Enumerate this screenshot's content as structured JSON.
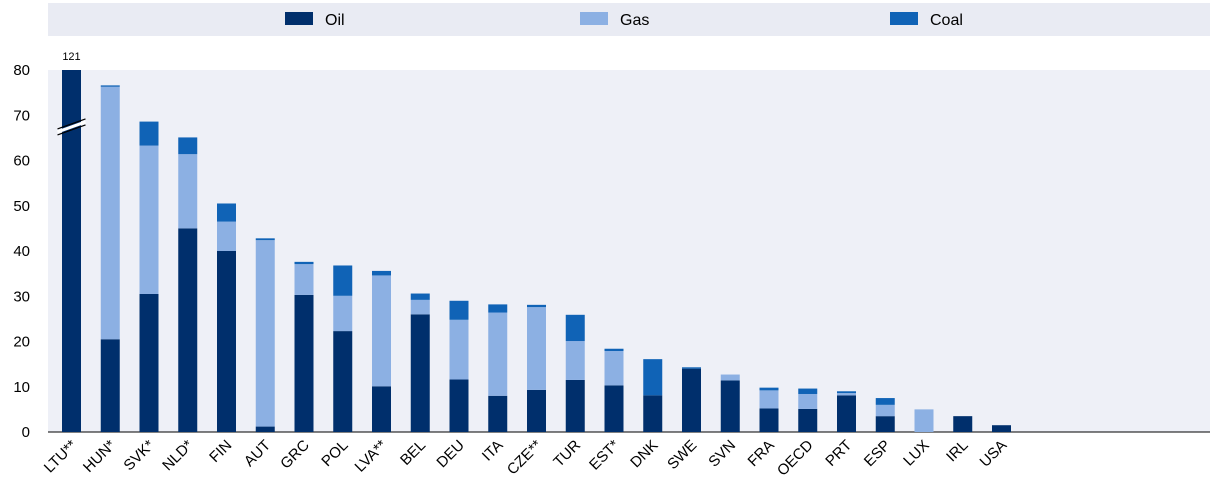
{
  "chart_data": {
    "type": "bar",
    "stacked": true,
    "categories": [
      "LTU**",
      "HUN*",
      "SVK*",
      "NLD*",
      "FIN",
      "AUT",
      "GRC",
      "POL",
      "LVA**",
      "BEL",
      "DEU",
      "ITA",
      "CZE**",
      "TUR",
      "EST*",
      "DNK",
      "SWE",
      "SVN",
      "FRA",
      "OECD",
      "PRT",
      "ESP",
      "LUX",
      "IRL",
      "USA"
    ],
    "series": [
      {
        "name": "Oil",
        "color": "#002f6c",
        "values": [
          121,
          20.5,
          30.5,
          45.0,
          40.0,
          1.2,
          30.3,
          22.3,
          10.1,
          26.0,
          11.6,
          8.0,
          9.3,
          11.5,
          10.3,
          8.1,
          14.0,
          11.4,
          5.2,
          5.1,
          8.1,
          3.5,
          0,
          3.5,
          1.5
        ]
      },
      {
        "name": "Gas",
        "color": "#8cb0e3",
        "values": [
          0,
          55.8,
          32.8,
          16.4,
          6.5,
          41.2,
          6.8,
          7.8,
          24.5,
          3.2,
          13.2,
          18.4,
          18.3,
          8.6,
          7.6,
          0,
          0,
          1.3,
          4.0,
          3.3,
          0.5,
          2.5,
          5.0,
          0,
          0
        ]
      },
      {
        "name": "Coal",
        "color": "#1063b6",
        "values": [
          0,
          0.3,
          5.3,
          3.7,
          4.0,
          0.4,
          0.5,
          6.7,
          1.0,
          1.4,
          4.2,
          1.8,
          0.5,
          5.8,
          0.5,
          8.0,
          0.3,
          0,
          0.6,
          1.2,
          0.4,
          1.5,
          0,
          0,
          0
        ]
      }
    ],
    "ylim": [
      0,
      80
    ],
    "yticks": [
      0,
      10,
      20,
      30,
      40,
      50,
      60,
      70,
      80
    ],
    "axis_break": true,
    "data_labels": [
      {
        "category": "LTU**",
        "text": "121"
      }
    ],
    "legend": {
      "position": "top",
      "entries": [
        "Oil",
        "Gas",
        "Coal"
      ]
    },
    "grid": false
  }
}
